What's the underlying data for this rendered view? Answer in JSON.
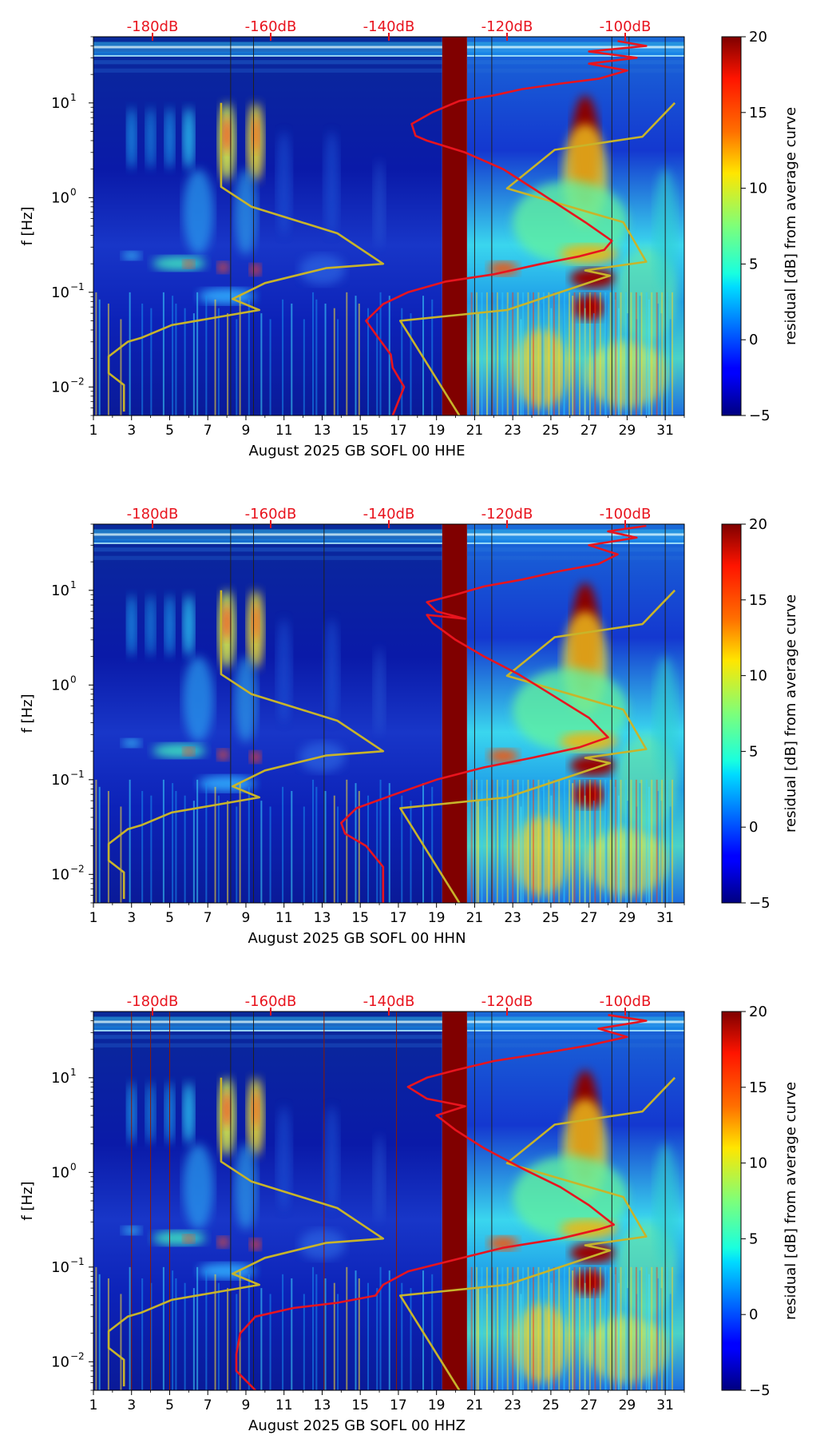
{
  "chart_data": [
    {
      "type": "heatmap",
      "xlabel": "August 2025 GB SOFL 00 HHE",
      "ylabel": "f [Hz]",
      "xlim": [
        1,
        32
      ],
      "ylim": [
        0.005,
        50
      ],
      "yscale": "log",
      "x_ticks": [
        "1",
        "3",
        "5",
        "7",
        "9",
        "11",
        "13",
        "15",
        "17",
        "19",
        "21",
        "23",
        "25",
        "27",
        "29",
        "31"
      ],
      "y_ticks": [
        {
          "label": "10",
          "exp": "1",
          "value": 10
        },
        {
          "label": "10",
          "exp": "0",
          "value": 1
        },
        {
          "label": "10",
          "exp": "−1",
          "value": 0.1
        },
        {
          "label": "10",
          "exp": "−2",
          "value": 0.01
        }
      ],
      "top_axis_ticks": [
        "-180dB",
        "-160dB",
        "-140dB",
        "-120dB",
        "-100dB"
      ],
      "colorbar": {
        "label": "residual [dB] from average curve",
        "min": -5,
        "max": 20,
        "ticks": [
          "20",
          "15",
          "10",
          "5",
          "0",
          "−5"
        ]
      },
      "series": [
        {
          "name": "noise-model",
          "color": "#c8b42a",
          "points": [
            [
              7.7,
              10
            ],
            [
              7.7,
              1.3
            ],
            [
              9.3,
              0.8
            ],
            [
              13.8,
              0.42
            ],
            [
              16.2,
              0.2
            ],
            [
              13.2,
              0.18
            ],
            [
              10,
              0.125
            ],
            [
              8.3,
              0.085
            ],
            [
              9.7,
              0.065
            ],
            [
              5.1,
              0.045
            ],
            [
              3.5,
              0.033
            ],
            [
              2.8,
              0.03
            ],
            [
              1.8,
              0.021
            ],
            [
              1.8,
              0.014
            ],
            [
              2.6,
              0.0105
            ],
            [
              2.6,
              0.0055
            ]
          ]
        },
        {
          "name": "noise-model-right",
          "color": "#c8b42a",
          "points": [
            [
              20.2,
              0.005
            ],
            [
              17.1,
              0.05
            ],
            [
              22.7,
              0.065
            ],
            [
              28.1,
              0.15
            ],
            [
              26.8,
              0.17
            ],
            [
              30,
              0.21
            ],
            [
              28.8,
              0.55
            ],
            [
              22.7,
              1.25
            ],
            [
              25.2,
              3.2
            ],
            [
              29.8,
              4.4
            ],
            [
              31.5,
              10
            ]
          ]
        },
        {
          "name": "psd-curve",
          "color": "#e8141e",
          "points": [
            [
              16.7,
              0.005
            ],
            [
              17.3,
              0.01
            ],
            [
              16.7,
              0.016
            ],
            [
              16.6,
              0.022
            ],
            [
              16,
              0.032
            ],
            [
              15.3,
              0.05
            ],
            [
              16.2,
              0.075
            ],
            [
              17.5,
              0.1
            ],
            [
              19.5,
              0.13
            ],
            [
              22,
              0.155
            ],
            [
              24.5,
              0.2
            ],
            [
              26.5,
              0.24
            ],
            [
              27.8,
              0.28
            ],
            [
              28.2,
              0.35
            ],
            [
              26.8,
              0.55
            ],
            [
              24.5,
              1.1
            ],
            [
              22.5,
              2
            ],
            [
              20.5,
              3
            ],
            [
              18.5,
              4
            ],
            [
              17.9,
              4.5
            ],
            [
              17.7,
              6
            ],
            [
              18.8,
              8
            ],
            [
              20.2,
              10.5
            ],
            [
              22,
              12
            ],
            [
              23.5,
              14
            ],
            [
              25.5,
              16
            ],
            [
              27.5,
              18
            ],
            [
              29,
              22
            ],
            [
              27,
              26
            ],
            [
              29.5,
              30
            ],
            [
              27,
              35
            ],
            [
              30,
              40
            ],
            [
              28.5,
              45
            ]
          ]
        }
      ]
    },
    {
      "type": "heatmap",
      "xlabel": "August 2025 GB SOFL 00 HHN",
      "ylabel": "f [Hz]",
      "xlim": [
        1,
        32
      ],
      "ylim": [
        0.005,
        50
      ],
      "yscale": "log",
      "x_ticks": [
        "1",
        "3",
        "5",
        "7",
        "9",
        "11",
        "13",
        "15",
        "17",
        "19",
        "21",
        "23",
        "25",
        "27",
        "29",
        "31"
      ],
      "y_ticks": [
        {
          "label": "10",
          "exp": "1",
          "value": 10
        },
        {
          "label": "10",
          "exp": "0",
          "value": 1
        },
        {
          "label": "10",
          "exp": "−1",
          "value": 0.1
        },
        {
          "label": "10",
          "exp": "−2",
          "value": 0.01
        }
      ],
      "top_axis_ticks": [
        "-180dB",
        "-160dB",
        "-140dB",
        "-120dB",
        "-100dB"
      ],
      "colorbar": {
        "label": "residual [dB] from average curve",
        "min": -5,
        "max": 20,
        "ticks": [
          "20",
          "15",
          "10",
          "5",
          "0",
          "−5"
        ]
      },
      "series": [
        {
          "name": "noise-model",
          "color": "#c8b42a",
          "points": [
            [
              7.7,
              10
            ],
            [
              7.7,
              1.3
            ],
            [
              9.3,
              0.8
            ],
            [
              13.8,
              0.42
            ],
            [
              16.2,
              0.2
            ],
            [
              13.2,
              0.18
            ],
            [
              10,
              0.125
            ],
            [
              8.3,
              0.085
            ],
            [
              9.7,
              0.065
            ],
            [
              5.1,
              0.045
            ],
            [
              3.5,
              0.033
            ],
            [
              2.8,
              0.03
            ],
            [
              1.8,
              0.021
            ],
            [
              1.8,
              0.014
            ],
            [
              2.6,
              0.0105
            ],
            [
              2.6,
              0.0055
            ]
          ]
        },
        {
          "name": "noise-model-right",
          "color": "#c8b42a",
          "points": [
            [
              20.2,
              0.005
            ],
            [
              17.1,
              0.05
            ],
            [
              22.7,
              0.065
            ],
            [
              28.1,
              0.15
            ],
            [
              26.8,
              0.17
            ],
            [
              30,
              0.21
            ],
            [
              28.8,
              0.55
            ],
            [
              22.7,
              1.25
            ],
            [
              25.2,
              3.2
            ],
            [
              29.8,
              4.4
            ],
            [
              31.5,
              10
            ]
          ]
        },
        {
          "name": "psd-curve",
          "color": "#e8141e",
          "points": [
            [
              16.2,
              0.005
            ],
            [
              16.2,
              0.012
            ],
            [
              15.3,
              0.02
            ],
            [
              14.2,
              0.027
            ],
            [
              14,
              0.035
            ],
            [
              14.8,
              0.05
            ],
            [
              16.8,
              0.07
            ],
            [
              19,
              0.1
            ],
            [
              21.5,
              0.135
            ],
            [
              24,
              0.17
            ],
            [
              26.5,
              0.22
            ],
            [
              28,
              0.28
            ],
            [
              27,
              0.45
            ],
            [
              25,
              0.8
            ],
            [
              23.3,
              1.3
            ],
            [
              21.5,
              2
            ],
            [
              20,
              3
            ],
            [
              18.8,
              4.5
            ],
            [
              18.5,
              5.5
            ],
            [
              20.5,
              5
            ],
            [
              19,
              6
            ],
            [
              18.5,
              7.5
            ],
            [
              20,
              9
            ],
            [
              21.5,
              11
            ],
            [
              23.5,
              13
            ],
            [
              25.5,
              16
            ],
            [
              27.5,
              19
            ],
            [
              28.5,
              24
            ],
            [
              27,
              30
            ],
            [
              29.5,
              36
            ],
            [
              28,
              42
            ],
            [
              30,
              48
            ]
          ]
        }
      ]
    },
    {
      "type": "heatmap",
      "xlabel": "August 2025 GB SOFL 00 HHZ",
      "ylabel": "f [Hz]",
      "xlim": [
        1,
        32
      ],
      "ylim": [
        0.005,
        50
      ],
      "yscale": "log",
      "x_ticks": [
        "1",
        "3",
        "5",
        "7",
        "9",
        "11",
        "13",
        "15",
        "17",
        "19",
        "21",
        "23",
        "25",
        "27",
        "29",
        "31"
      ],
      "y_ticks": [
        {
          "label": "10",
          "exp": "1",
          "value": 10
        },
        {
          "label": "10",
          "exp": "0",
          "value": 1
        },
        {
          "label": "10",
          "exp": "−1",
          "value": 0.1
        },
        {
          "label": "10",
          "exp": "−2",
          "value": 0.01
        }
      ],
      "top_axis_ticks": [
        "-180dB",
        "-160dB",
        "-140dB",
        "-120dB",
        "-100dB"
      ],
      "colorbar": {
        "label": "residual [dB] from average curve",
        "min": -5,
        "max": 20,
        "ticks": [
          "20",
          "15",
          "10",
          "5",
          "0",
          "−5"
        ]
      },
      "series": [
        {
          "name": "noise-model",
          "color": "#c8b42a",
          "points": [
            [
              7.7,
              10
            ],
            [
              7.7,
              1.3
            ],
            [
              9.3,
              0.8
            ],
            [
              13.8,
              0.42
            ],
            [
              16.2,
              0.2
            ],
            [
              13.2,
              0.18
            ],
            [
              10,
              0.125
            ],
            [
              8.3,
              0.085
            ],
            [
              9.7,
              0.065
            ],
            [
              5.1,
              0.045
            ],
            [
              3.5,
              0.033
            ],
            [
              2.8,
              0.03
            ],
            [
              1.8,
              0.021
            ],
            [
              1.8,
              0.014
            ],
            [
              2.6,
              0.0105
            ],
            [
              2.6,
              0.0055
            ]
          ]
        },
        {
          "name": "noise-model-right",
          "color": "#c8b42a",
          "points": [
            [
              20.2,
              0.005
            ],
            [
              17.1,
              0.05
            ],
            [
              22.7,
              0.065
            ],
            [
              28.1,
              0.15
            ],
            [
              26.8,
              0.17
            ],
            [
              30,
              0.21
            ],
            [
              28.8,
              0.55
            ],
            [
              22.7,
              1.25
            ],
            [
              25.2,
              3.2
            ],
            [
              29.8,
              4.4
            ],
            [
              31.5,
              10
            ]
          ]
        },
        {
          "name": "psd-curve",
          "color": "#e8141e",
          "points": [
            [
              9.5,
              0.005
            ],
            [
              8.5,
              0.008
            ],
            [
              8.5,
              0.012
            ],
            [
              8.7,
              0.02
            ],
            [
              9.5,
              0.03
            ],
            [
              11.5,
              0.037
            ],
            [
              13.8,
              0.042
            ],
            [
              15.8,
              0.05
            ],
            [
              16.2,
              0.065
            ],
            [
              17.5,
              0.09
            ],
            [
              20,
              0.12
            ],
            [
              22.5,
              0.16
            ],
            [
              25.5,
              0.2
            ],
            [
              27.5,
              0.25
            ],
            [
              28.3,
              0.28
            ],
            [
              27,
              0.45
            ],
            [
              25.5,
              0.7
            ],
            [
              23.5,
              1.1
            ],
            [
              21.5,
              1.8
            ],
            [
              20,
              2.8
            ],
            [
              19,
              4
            ],
            [
              20.5,
              5
            ],
            [
              18.5,
              6
            ],
            [
              17.5,
              8
            ],
            [
              18.5,
              10
            ],
            [
              20,
              12
            ],
            [
              22,
              15
            ],
            [
              24.5,
              18
            ],
            [
              27,
              22
            ],
            [
              29,
              27
            ],
            [
              27.5,
              33
            ],
            [
              30,
              40
            ],
            [
              28,
              46
            ]
          ]
        }
      ]
    }
  ]
}
